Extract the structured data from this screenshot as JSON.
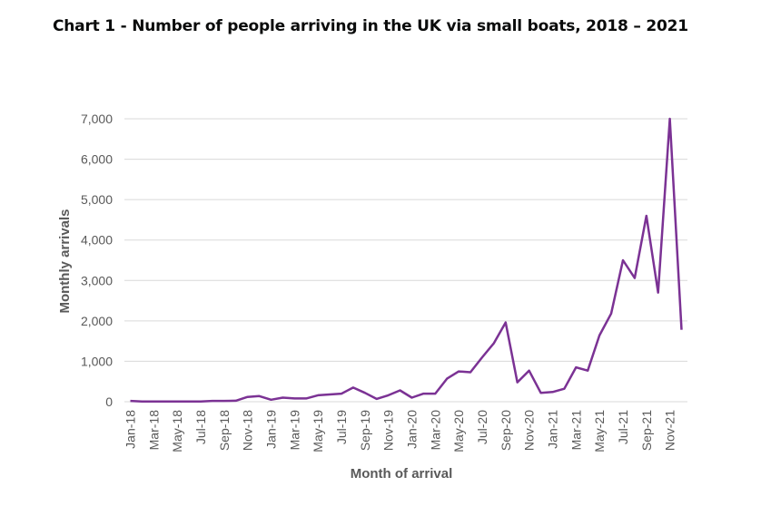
{
  "chart_data": {
    "type": "line",
    "title": "Chart 1 - Number of people arriving in the UK via small boats, 2018 – 2021",
    "xlabel": "Month of arrival",
    "ylabel": "Monthly arrivals",
    "ylim": [
      0,
      7000
    ],
    "yticks": [
      0,
      1000,
      2000,
      3000,
      4000,
      5000,
      6000,
      7000
    ],
    "ytick_labels": [
      "0",
      "1,000",
      "2,000",
      "3,000",
      "4,000",
      "5,000",
      "6,000",
      "7,000"
    ],
    "grid": "horizontal",
    "legend": "none",
    "line_color": "#7b3294",
    "xtick_labels": [
      "Jan-18",
      "Mar-18",
      "May-18",
      "Jul-18",
      "Sep-18",
      "Nov-18",
      "Jan-19",
      "Mar-19",
      "May-19",
      "Jul-19",
      "Sep-19",
      "Nov-19",
      "Jan-20",
      "Mar-20",
      "May-20",
      "Jul-20",
      "Sep-20",
      "Nov-20",
      "Jan-21",
      "Mar-21",
      "May-21",
      "Jul-21",
      "Sep-21",
      "Nov-21"
    ],
    "categories": [
      "Jan-18",
      "Feb-18",
      "Mar-18",
      "Apr-18",
      "May-18",
      "Jun-18",
      "Jul-18",
      "Aug-18",
      "Sep-18",
      "Oct-18",
      "Nov-18",
      "Dec-18",
      "Jan-19",
      "Feb-19",
      "Mar-19",
      "Apr-19",
      "May-19",
      "Jun-19",
      "Jul-19",
      "Aug-19",
      "Sep-19",
      "Oct-19",
      "Nov-19",
      "Dec-19",
      "Jan-20",
      "Feb-20",
      "Mar-20",
      "Apr-20",
      "May-20",
      "Jun-20",
      "Jul-20",
      "Aug-20",
      "Sep-20",
      "Oct-20",
      "Nov-20",
      "Dec-20",
      "Jan-21",
      "Feb-21",
      "Mar-21",
      "Apr-21",
      "May-21",
      "Jun-21",
      "Jul-21",
      "Aug-21",
      "Sep-21",
      "Oct-21",
      "Nov-21",
      "Dec-21"
    ],
    "values": [
      20,
      5,
      5,
      5,
      5,
      5,
      5,
      20,
      20,
      25,
      120,
      140,
      50,
      100,
      80,
      80,
      160,
      180,
      200,
      350,
      220,
      70,
      160,
      280,
      100,
      200,
      200,
      570,
      750,
      730,
      1100,
      1450,
      1960,
      480,
      770,
      220,
      240,
      320,
      850,
      770,
      1640,
      2180,
      3500,
      3060,
      4600,
      2700,
      7000,
      1780
    ]
  }
}
